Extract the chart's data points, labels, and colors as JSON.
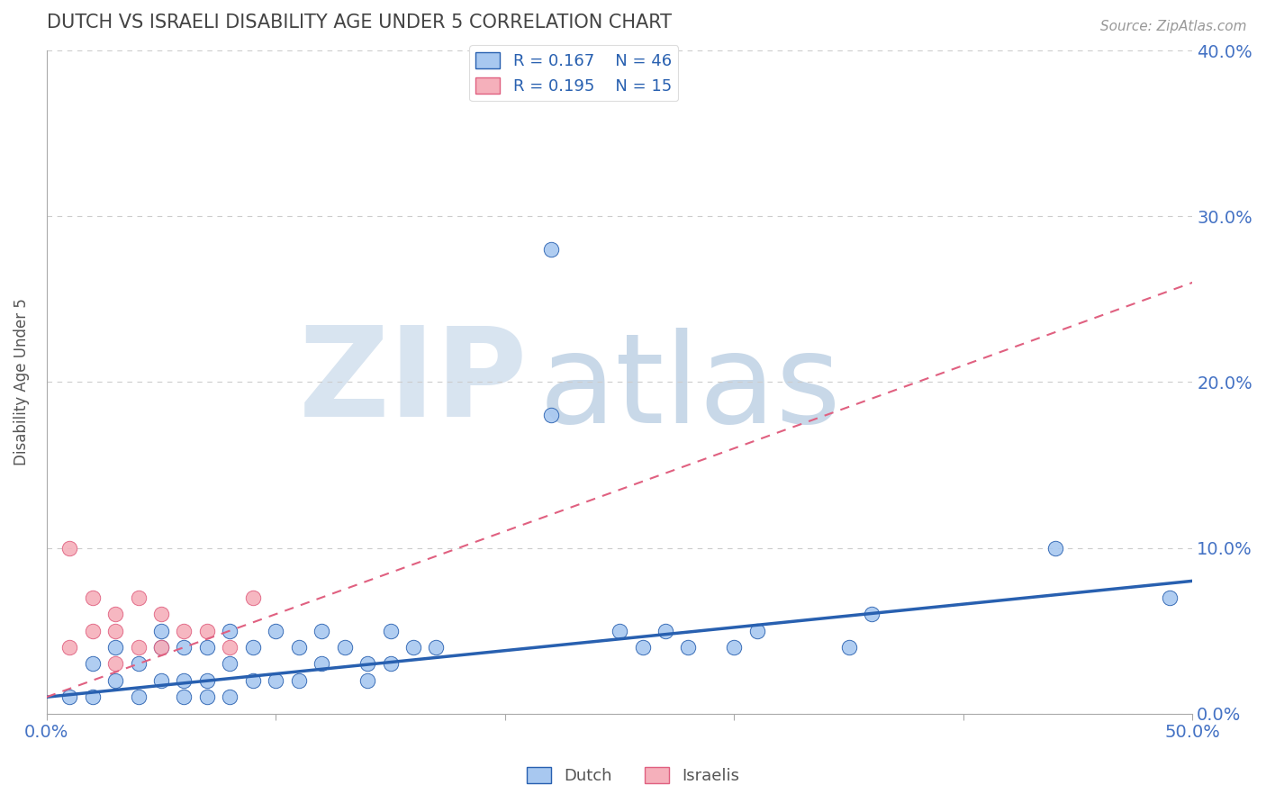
{
  "title": "DUTCH VS ISRAELI DISABILITY AGE UNDER 5 CORRELATION CHART",
  "source": "Source: ZipAtlas.com",
  "xlabel": "",
  "ylabel": "Disability Age Under 5",
  "xlim": [
    0.0,
    0.5
  ],
  "ylim": [
    0.0,
    0.4
  ],
  "ytick_labels": [
    "0.0%",
    "10.0%",
    "20.0%",
    "30.0%",
    "40.0%"
  ],
  "ytick_values": [
    0.0,
    0.1,
    0.2,
    0.3,
    0.4
  ],
  "xtick_labels": [
    "0.0%",
    "50.0%"
  ],
  "xtick_values": [
    0.0,
    0.5
  ],
  "dutch_R": "0.167",
  "dutch_N": "46",
  "israeli_R": "0.195",
  "israeli_N": "15",
  "dutch_color": "#A8C8F0",
  "dutch_line_color": "#2860B0",
  "israeli_color": "#F5B0BB",
  "israeli_line_color": "#E06080",
  "dutch_scatter_x": [
    0.01,
    0.02,
    0.02,
    0.03,
    0.03,
    0.04,
    0.04,
    0.05,
    0.05,
    0.05,
    0.06,
    0.06,
    0.06,
    0.07,
    0.07,
    0.07,
    0.08,
    0.08,
    0.08,
    0.09,
    0.09,
    0.1,
    0.1,
    0.11,
    0.11,
    0.12,
    0.12,
    0.13,
    0.14,
    0.14,
    0.15,
    0.15,
    0.16,
    0.17,
    0.22,
    0.22,
    0.25,
    0.26,
    0.27,
    0.28,
    0.3,
    0.31,
    0.35,
    0.36,
    0.44,
    0.49
  ],
  "dutch_scatter_y": [
    0.01,
    0.03,
    0.01,
    0.04,
    0.02,
    0.03,
    0.01,
    0.04,
    0.02,
    0.05,
    0.04,
    0.02,
    0.01,
    0.04,
    0.02,
    0.01,
    0.05,
    0.03,
    0.01,
    0.04,
    0.02,
    0.05,
    0.02,
    0.04,
    0.02,
    0.05,
    0.03,
    0.04,
    0.03,
    0.02,
    0.05,
    0.03,
    0.04,
    0.04,
    0.18,
    0.28,
    0.05,
    0.04,
    0.05,
    0.04,
    0.04,
    0.05,
    0.04,
    0.06,
    0.1,
    0.07
  ],
  "israeli_scatter_x": [
    0.01,
    0.01,
    0.02,
    0.02,
    0.03,
    0.03,
    0.03,
    0.04,
    0.04,
    0.05,
    0.05,
    0.06,
    0.07,
    0.08,
    0.09
  ],
  "israeli_scatter_y": [
    0.1,
    0.04,
    0.07,
    0.05,
    0.06,
    0.05,
    0.03,
    0.07,
    0.04,
    0.06,
    0.04,
    0.05,
    0.05,
    0.04,
    0.07
  ],
  "dutch_trendline_x": [
    0.0,
    0.5
  ],
  "dutch_trendline_y": [
    0.01,
    0.08
  ],
  "israeli_trendline_x": [
    0.0,
    0.5
  ],
  "israeli_trendline_y": [
    0.01,
    0.26
  ],
  "background_color": "#FFFFFF",
  "grid_color": "#CCCCCC",
  "title_color": "#444444",
  "axis_label_color": "#555555",
  "tick_color": "#4472C4",
  "watermark_zip": "ZIP",
  "watermark_atlas": "atlas",
  "watermark_color_zip": "#D8E4F0",
  "watermark_color_atlas": "#C8D8E8"
}
